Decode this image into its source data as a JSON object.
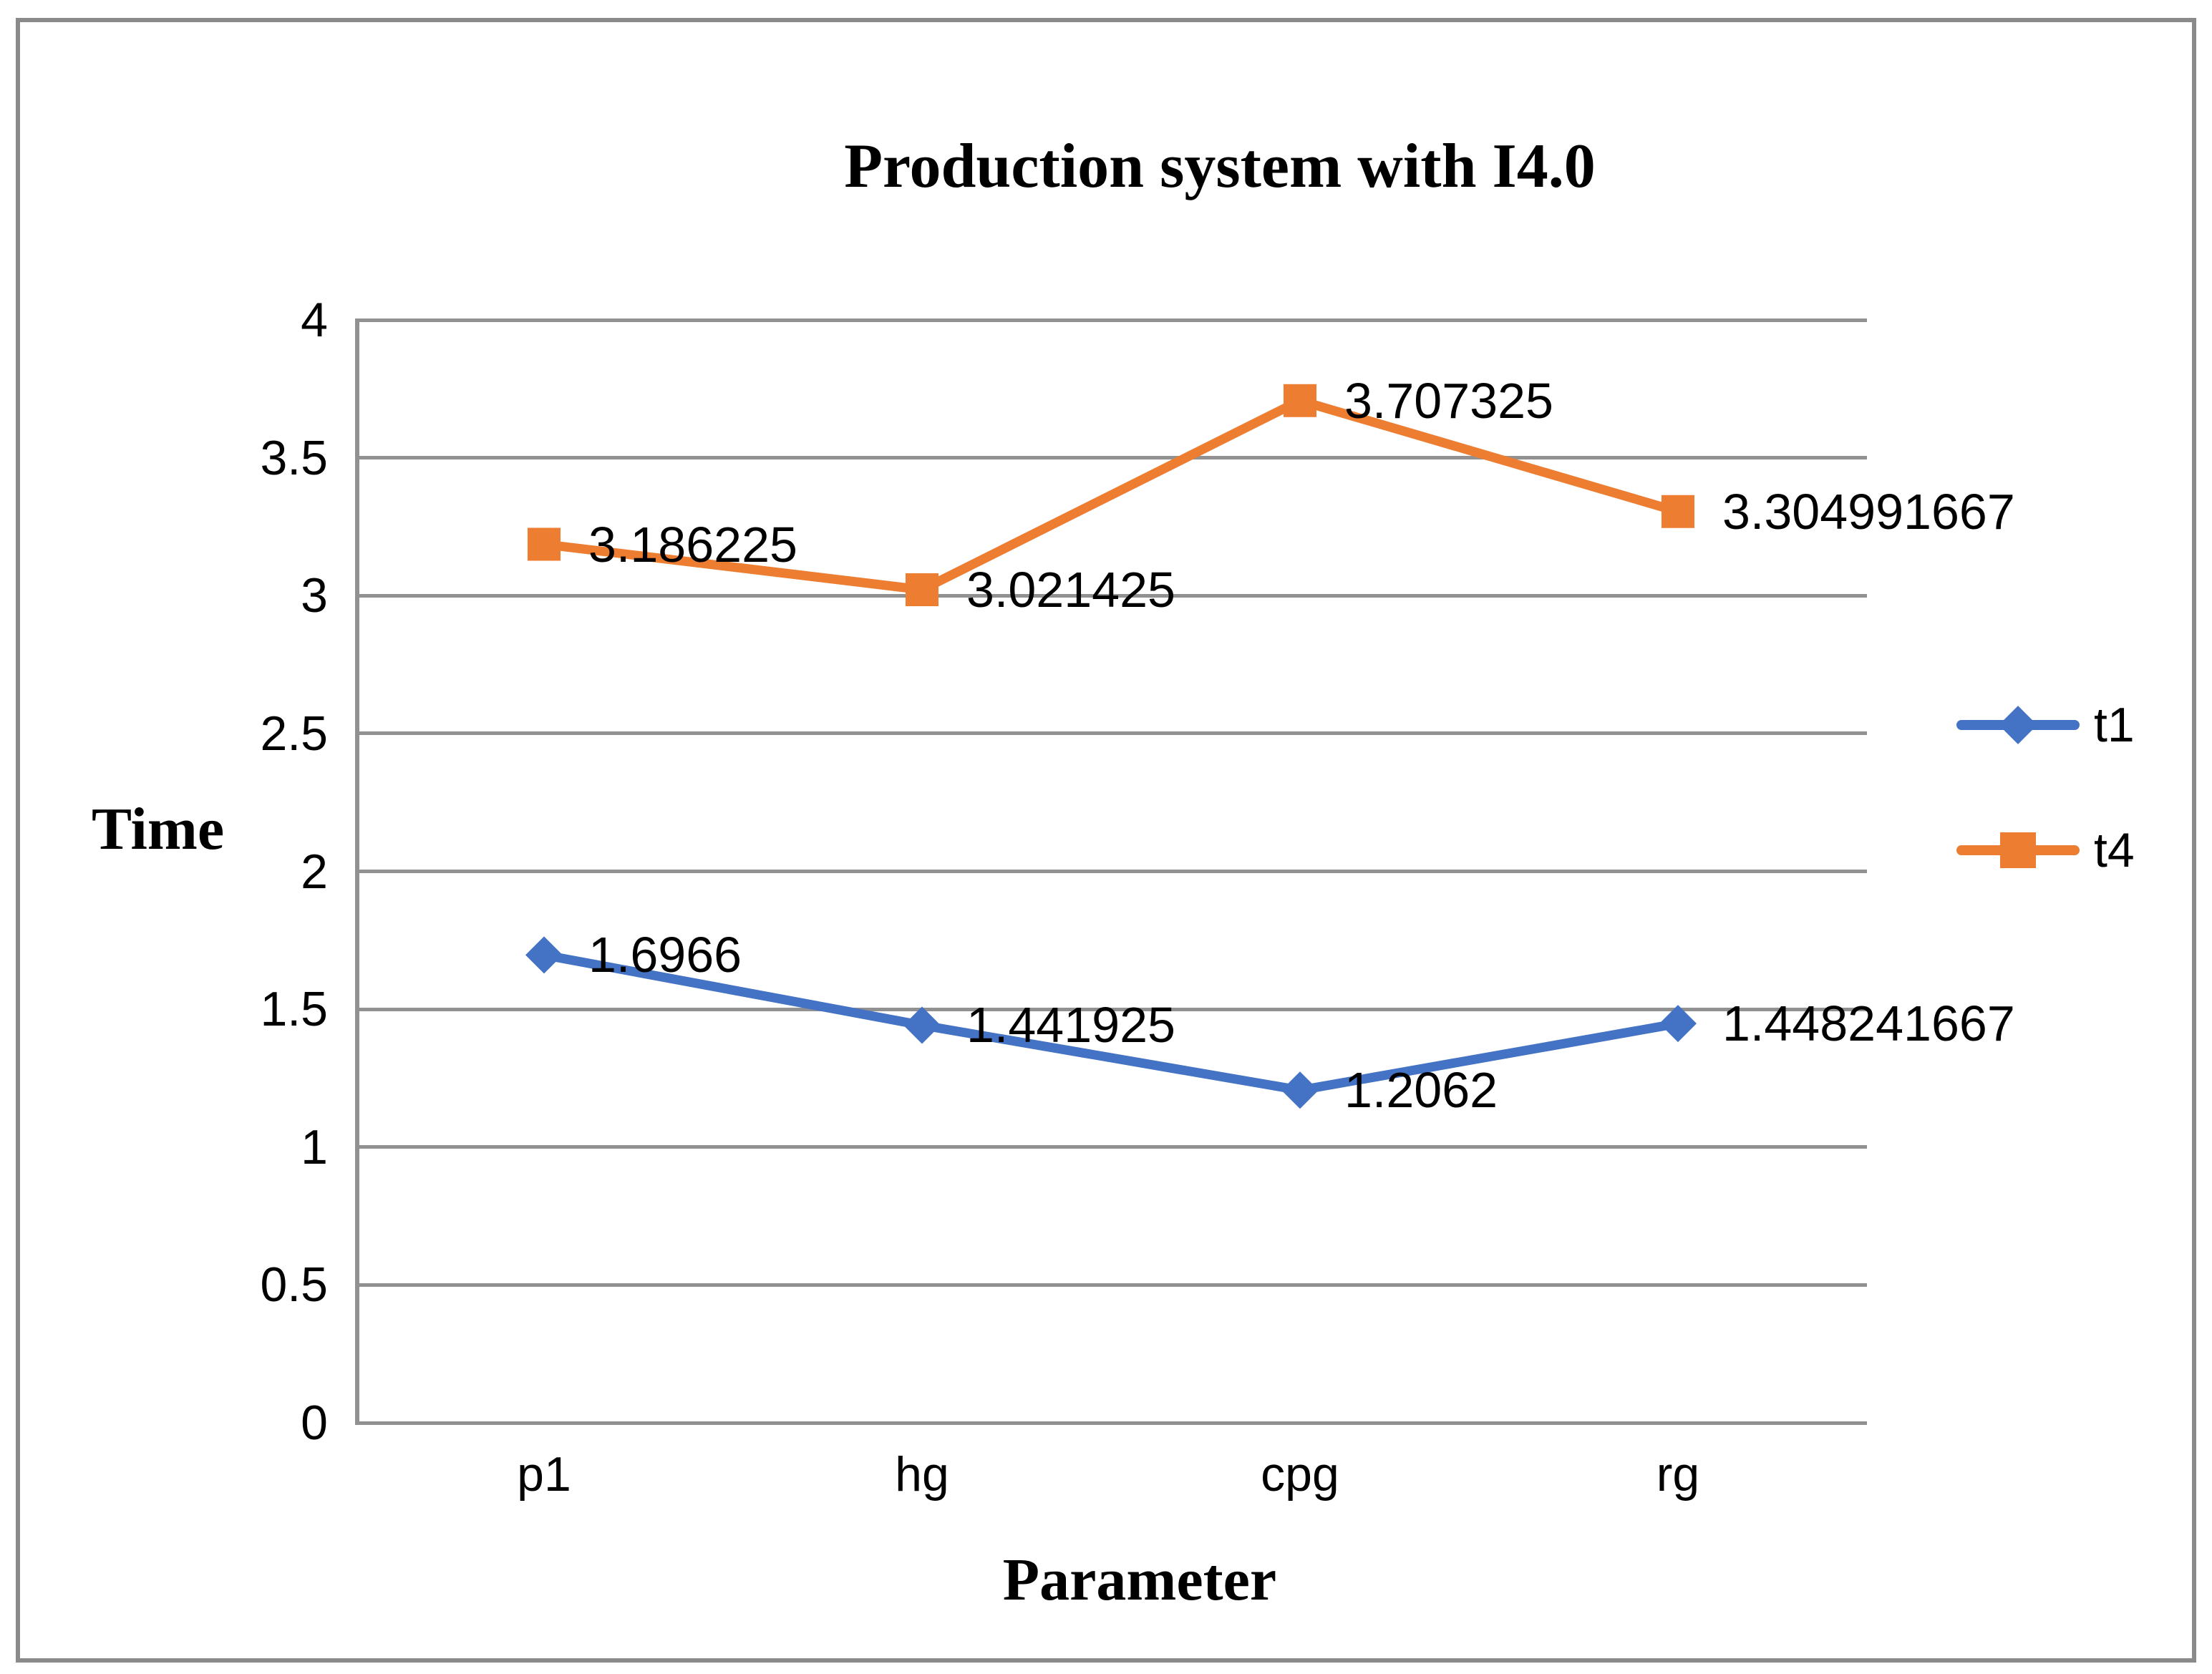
{
  "chart_data": {
    "type": "line",
    "title": "Production system with I4.0",
    "xlabel": "Parameter",
    "ylabel": "Time",
    "categories": [
      "p1",
      "hg",
      "cpg",
      "rg"
    ],
    "series": [
      {
        "name": "t1",
        "color": "#4472C4",
        "marker": "diamond",
        "values": [
          1.6966,
          1.441925,
          1.2062,
          1.448241667
        ],
        "labels": [
          "1.6966",
          "1.441925",
          "1.2062",
          "1.448241667"
        ]
      },
      {
        "name": "t4",
        "color": "#ED7D31",
        "marker": "square",
        "values": [
          3.186225,
          3.021425,
          3.707325,
          3.304991667
        ],
        "labels": [
          "3.186225",
          "3.021425",
          "3.707325",
          "3.304991667"
        ]
      }
    ],
    "ylim": [
      0,
      4
    ],
    "yticks": [
      0,
      0.5,
      1,
      1.5,
      2,
      2.5,
      3,
      3.5,
      4
    ],
    "ytick_labels": [
      "0",
      "0.5",
      "1",
      "1.5",
      "2",
      "2.5",
      "3",
      "3.5",
      "4"
    ],
    "grid": true,
    "legend_position": "right",
    "gridline_color": "#919191",
    "axis_color": "#8a8a8a",
    "frame_border_color": "#8a8a8a"
  }
}
